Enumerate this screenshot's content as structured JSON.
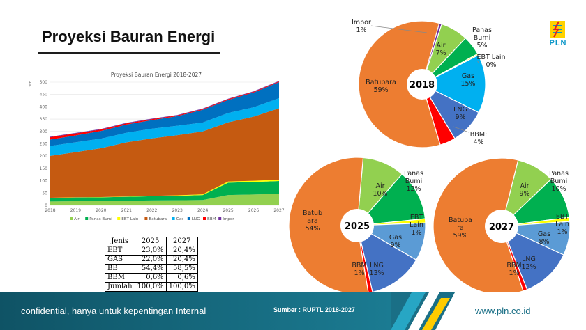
{
  "page": {
    "title": "Proyeksi Bauran Energi",
    "logo_text": "PLN",
    "footer_left": "confidential, hanya untuk kepentingan Internal",
    "footer_source": "Sumber : RUPTL 2018-2027",
    "footer_web": "www.pln.co.id"
  },
  "colors": {
    "air": "#92d050",
    "panas_bumi": "#00b050",
    "ebt_lain": "#ffff00",
    "batubara": "#c55a11",
    "batubara_pie": "#ed7d31",
    "gas": "#00b0f0",
    "gas_pie_later": "#5b9bd5",
    "lng": "#0070c0",
    "lng_pie": "#4472c4",
    "bbm": "#ff0000",
    "impor": "#7030a0",
    "footer": "#1a6f86"
  },
  "chart_data": [
    {
      "type": "area",
      "title": "Proyeksi Bauran Energi 2018-2027",
      "ylabel": "TWh",
      "ylim": [
        0,
        500
      ],
      "yticks": [
        "0",
        "50",
        "100",
        "150",
        "200",
        "250",
        "300",
        "350",
        "400",
        "450",
        "500"
      ],
      "categories": [
        "2018",
        "2019",
        "2020",
        "2021",
        "2022",
        "2023",
        "2024",
        "2025",
        "2026",
        "2027"
      ],
      "stacked": true,
      "series": [
        {
          "name": "Air",
          "values": [
            16,
            17,
            18,
            19,
            20,
            21,
            22,
            42,
            44,
            47
          ]
        },
        {
          "name": "Panas Bumi",
          "values": [
            14,
            15,
            15,
            16,
            17,
            18,
            20,
            50,
            51,
            52
          ]
        },
        {
          "name": "EBT Lain",
          "values": [
            1,
            1,
            1,
            1,
            2,
            2,
            3,
            5,
            5,
            5
          ]
        },
        {
          "name": "Batubara",
          "values": [
            170,
            183,
            198,
            220,
            233,
            244,
            255,
            240,
            260,
            290
          ]
        },
        {
          "name": "Gas",
          "values": [
            40,
            40,
            39,
            39,
            39,
            38,
            36,
            38,
            38,
            41
          ]
        },
        {
          "name": "LNG",
          "values": [
            26,
            28,
            31,
            33,
            35,
            39,
            52,
            53,
            60,
            65
          ]
        },
        {
          "name": "BBM",
          "values": [
            10,
            8,
            6,
            5,
            4,
            3,
            3,
            3,
            3,
            3
          ]
        },
        {
          "name": "Impor",
          "values": [
            2,
            2,
            2,
            2,
            2,
            2,
            2,
            2,
            2,
            2
          ]
        }
      ],
      "legend": [
        "Air",
        "Panas Bumi",
        "EBT Lain",
        "Batubara",
        "Gas",
        "LNG",
        "BBM",
        "Impor"
      ],
      "legend_position": "bottom"
    },
    {
      "type": "pie",
      "center_label": "2018",
      "slices": [
        {
          "name": "Impor",
          "value": 1,
          "label_lines": [
            "Impor",
            "1%"
          ]
        },
        {
          "name": "Air",
          "value": 7,
          "label_lines": [
            "Air",
            "7%"
          ]
        },
        {
          "name": "Panas Bumi",
          "value": 5,
          "label_lines": [
            "Panas",
            "Bumi",
            "5%"
          ]
        },
        {
          "name": "EBT Lain",
          "value": 0,
          "label_lines": [
            "EBT Lain",
            "0%"
          ]
        },
        {
          "name": "Gas",
          "value": 15,
          "label_lines": [
            "Gas",
            "15%"
          ]
        },
        {
          "name": "LNG",
          "value": 9,
          "label_lines": [
            "LNG",
            "9%"
          ]
        },
        {
          "name": "BBM",
          "value": 4,
          "label_lines": [
            "BBM:",
            "4%"
          ]
        },
        {
          "name": "Batubara",
          "value": 59,
          "label_lines": [
            "Batubara",
            "59%"
          ]
        }
      ]
    },
    {
      "type": "pie",
      "center_label": "2025",
      "slices": [
        {
          "name": "Air",
          "value": 10,
          "label_lines": [
            "Air",
            "10%"
          ]
        },
        {
          "name": "Panas Bumi",
          "value": 12,
          "label_lines": [
            "Panas",
            "Bumi",
            "12%"
          ]
        },
        {
          "name": "EBT Lain",
          "value": 1,
          "label_lines": [
            "EBT",
            "Lain",
            "1%"
          ]
        },
        {
          "name": "Gas",
          "value": 9,
          "label_lines": [
            "Gas",
            "9%"
          ]
        },
        {
          "name": "LNG",
          "value": 13,
          "label_lines": [
            "LNG",
            "13%"
          ]
        },
        {
          "name": "BBM",
          "value": 1,
          "label_lines": [
            "BBM",
            "1%"
          ]
        },
        {
          "name": "Batubara",
          "value": 54,
          "label_lines": [
            "Batub",
            "ara",
            "54%"
          ]
        }
      ]
    },
    {
      "type": "pie",
      "center_label": "2027",
      "slices": [
        {
          "name": "Air",
          "value": 9,
          "label_lines": [
            "Air",
            "9%"
          ]
        },
        {
          "name": "Panas Bumi",
          "value": 10,
          "label_lines": [
            "Panas",
            "Bumi",
            "10%"
          ]
        },
        {
          "name": "EBT Lain",
          "value": 1,
          "label_lines": [
            "EBT",
            "Lain",
            "1%"
          ]
        },
        {
          "name": "Gas",
          "value": 8,
          "label_lines": [
            "Gas",
            "8%"
          ]
        },
        {
          "name": "LNG",
          "value": 12,
          "label_lines": [
            "LNG",
            "12%"
          ]
        },
        {
          "name": "BBM",
          "value": 1,
          "label_lines": [
            "BBM",
            "1%"
          ]
        },
        {
          "name": "Batubara",
          "value": 59,
          "label_lines": [
            "Batuba",
            "ra",
            "59%"
          ]
        }
      ]
    },
    {
      "type": "table",
      "headers": [
        "Jenis",
        "2025",
        "2027"
      ],
      "rows": [
        [
          "EBT",
          "23,0%",
          "20,4%"
        ],
        [
          "GAS",
          "22,0%",
          "20,4%"
        ],
        [
          "BB",
          "54,4%",
          "58,5%"
        ],
        [
          "BBM",
          "0,6%",
          "0,6%"
        ],
        [
          "Jumlah",
          "100,0%",
          "100,0%"
        ]
      ]
    }
  ]
}
